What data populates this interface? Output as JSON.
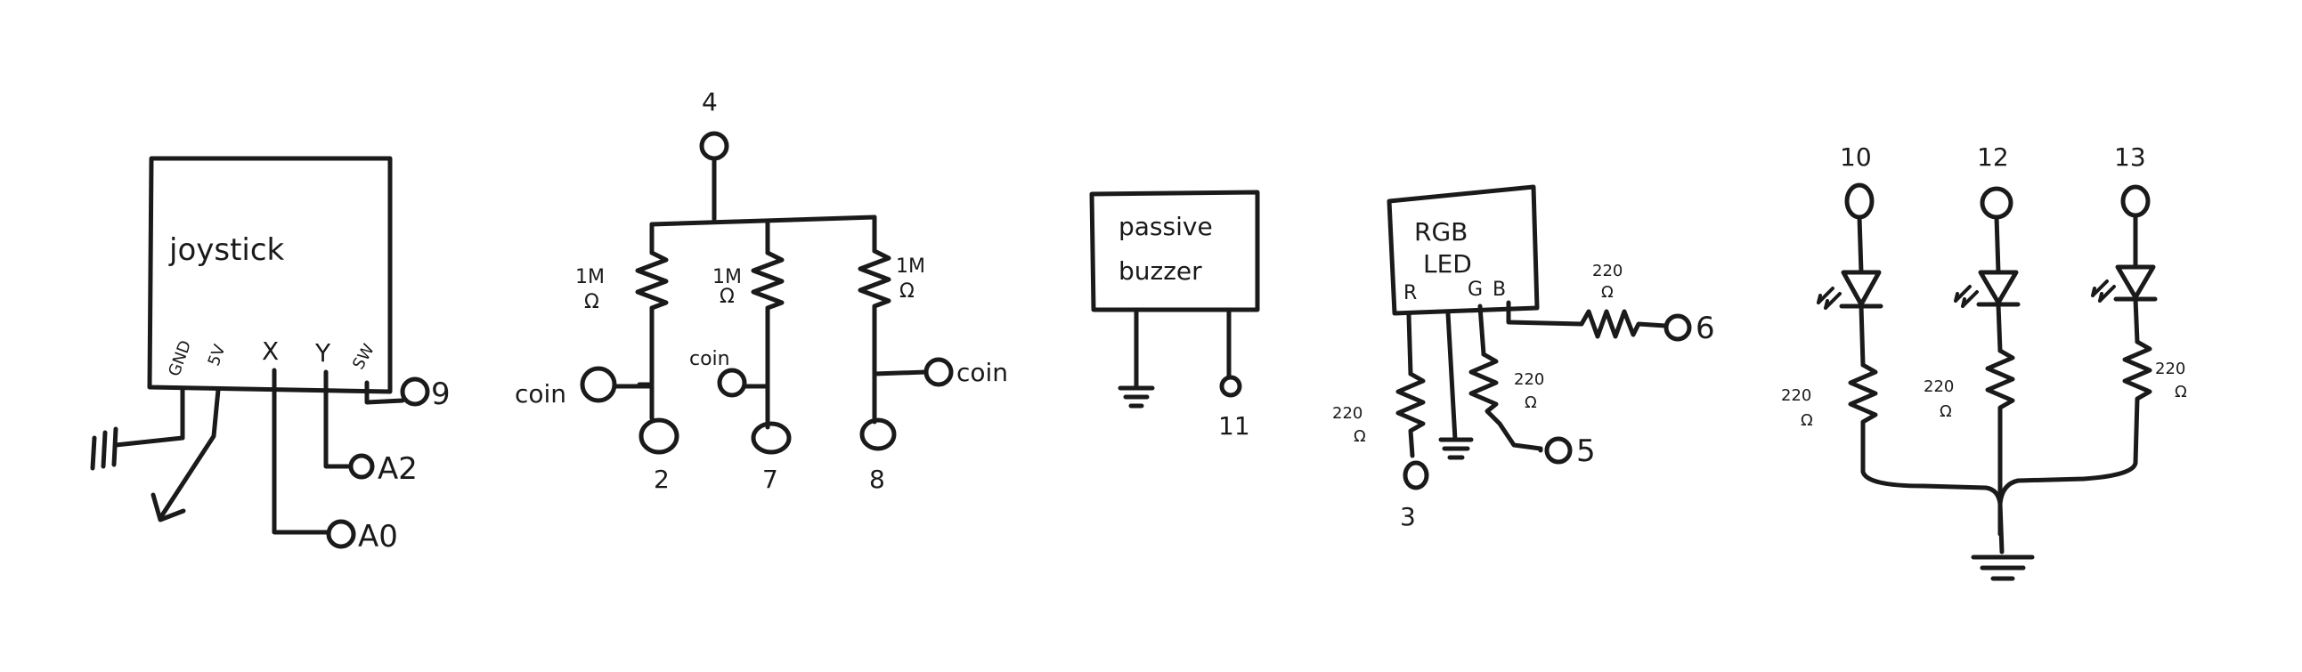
{
  "joystick": {
    "label": "joystick",
    "pins": {
      "gnd": "GND",
      "v5": "5V",
      "x": "X",
      "y": "Y",
      "sw": "SW"
    },
    "sw_pin": "9",
    "y_pin": "A2",
    "x_pin": "A0"
  },
  "coins": {
    "top_pin": "4",
    "resistors": [
      "1M",
      "1M",
      "1M"
    ],
    "ohm": "Ω",
    "coin_label": "coin",
    "pins": [
      "2",
      "7",
      "8"
    ]
  },
  "buzzer": {
    "line1": "passive",
    "line2": "buzzer",
    "pin": "11"
  },
  "rgb": {
    "line1": "RGB",
    "line2": "LED",
    "r": "R",
    "g": "G",
    "b": "B",
    "res_b": "220",
    "res_r": "220",
    "res_g": "220",
    "ohm": "Ω",
    "pin_b": "6",
    "pin_g": "5",
    "pin_r": "3"
  },
  "leds": {
    "pins": [
      "10",
      "12",
      "13"
    ],
    "resistors": [
      "220",
      "220",
      "220"
    ],
    "ohm": "Ω"
  }
}
